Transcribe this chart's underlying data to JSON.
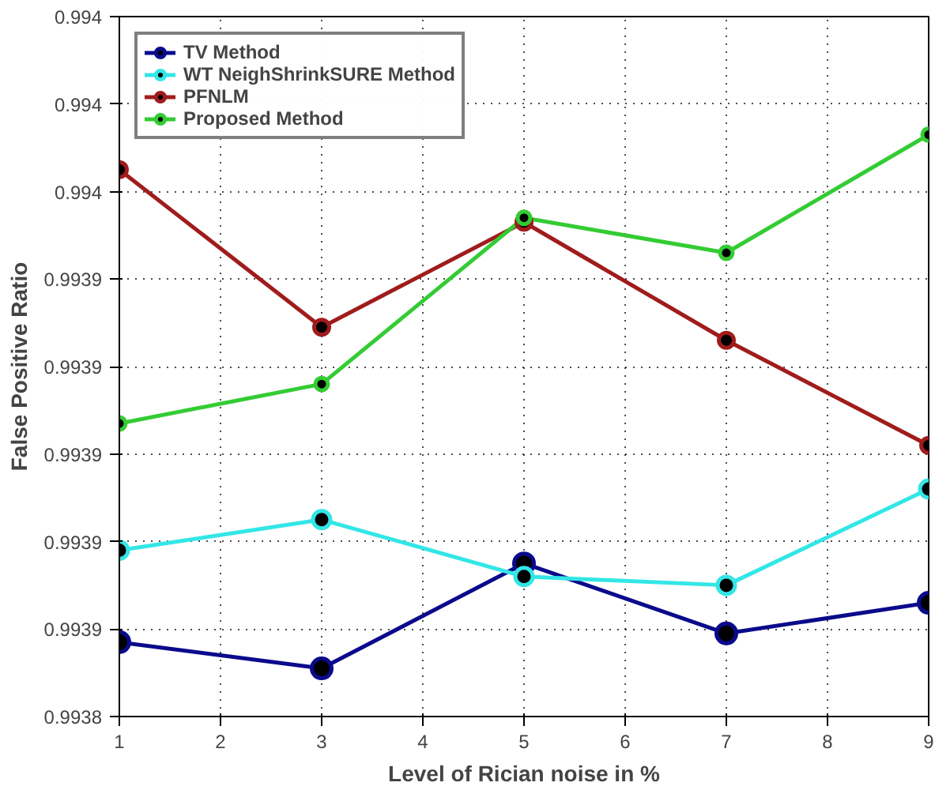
{
  "chart_data": {
    "type": "line",
    "xlabel": "Level of Rician noise in %",
    "ylabel": "False Positive Ratio",
    "x": [
      1,
      3,
      5,
      7,
      9
    ],
    "xlim": [
      1,
      9
    ],
    "xticks": [
      1,
      2,
      3,
      4,
      5,
      6,
      7,
      8,
      9
    ],
    "ylim": [
      0.99384,
      0.994
    ],
    "yticks": [
      {
        "value": 0.99384,
        "label": "0.9938"
      },
      {
        "value": 0.99386,
        "label": "0.9939"
      },
      {
        "value": 0.99388,
        "label": "0.9939"
      },
      {
        "value": 0.9939,
        "label": "0.9939"
      },
      {
        "value": 0.99392,
        "label": "0.9939"
      },
      {
        "value": 0.99394,
        "label": "0.9939"
      },
      {
        "value": 0.99396,
        "label": "0.994"
      },
      {
        "value": 0.99398,
        "label": "0.994"
      },
      {
        "value": 0.994,
        "label": "0.994"
      }
    ],
    "grid": true,
    "legend": "top left",
    "marker": "circle",
    "line_style": "solid",
    "series": [
      {
        "name": "TV Method",
        "color": "#0a0a8c",
        "values": [
          0.993857,
          0.993851,
          0.993875,
          0.993859,
          0.993866
        ]
      },
      {
        "name": "WT NeighShrinkSURE Method",
        "color": "#33e6e6",
        "values": [
          0.993878,
          0.993885,
          0.993872,
          0.99387,
          0.993892
        ]
      },
      {
        "name": "PFNLM",
        "color": "#a01c1c",
        "values": [
          0.993965,
          0.993929,
          0.993953,
          0.993926,
          0.993902
        ]
      },
      {
        "name": "Proposed Method",
        "color": "#33cc33",
        "values": [
          0.993907,
          0.993916,
          0.993954,
          0.993946,
          0.993973
        ]
      }
    ]
  }
}
